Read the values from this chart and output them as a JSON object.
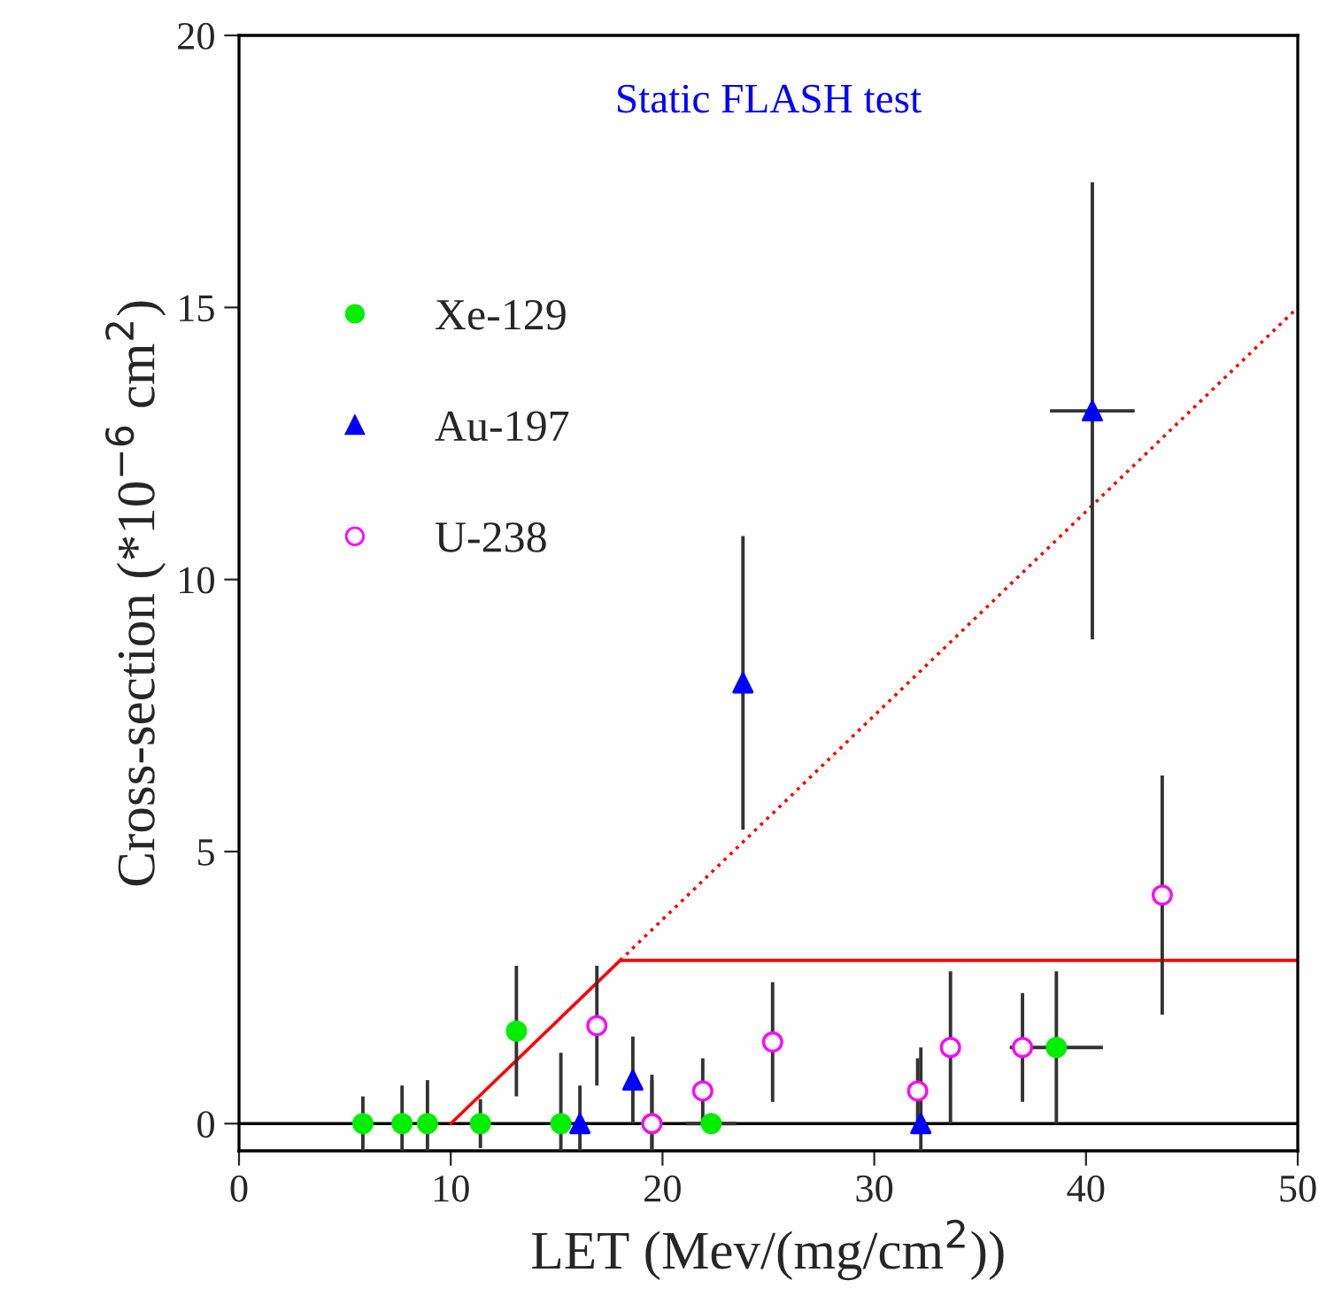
{
  "chart_data": {
    "type": "scatter",
    "xlabel": "LET (Mev/(mg/cm$^{2}$))",
    "ylabel": "Cross-section (*10$^{−6}$ cm$^{2}$)",
    "annotations": [
      "Static FLASH test"
    ],
    "xlim": [
      0,
      50
    ],
    "ylim": [
      -0.5,
      20
    ],
    "xticks": [
      0,
      10,
      20,
      30,
      40,
      50
    ],
    "yticks": [
      0,
      5,
      10,
      15,
      20
    ],
    "grid": false,
    "legend": "top left",
    "series": [
      {
        "name": "Xe-129",
        "color": "#00ee00",
        "marker": "circle",
        "x": [
          5.85,
          7.7,
          8.9,
          11.4,
          13.1,
          15.2,
          19.5,
          22.3,
          38.6
        ],
        "values": [
          0,
          0,
          0,
          0,
          1.7,
          0,
          0,
          0,
          1.4
        ],
        "errors": [
          0.5,
          0.7,
          0.8,
          0.45,
          1.2,
          1.3,
          0.9,
          null,
          1.4
        ],
        "xerrors": [
          null,
          null,
          null,
          null,
          null,
          null,
          null,
          1.2,
          2.2
        ]
      },
      {
        "name": "Au-197",
        "color": "#0000ff",
        "marker": "triangle",
        "x": [
          16.1,
          18.6,
          23.8,
          32.2,
          40.3
        ],
        "values": [
          0,
          0.8,
          8.1,
          0,
          13.1
        ],
        "errors": [
          0.7,
          0.8,
          2.7,
          1.4,
          4.2
        ],
        "xerrors": [
          null,
          null,
          null,
          null,
          2.0
        ]
      },
      {
        "name": "U-238",
        "color": "#ff00ff",
        "marker": "open circle",
        "x": [
          16.9,
          19.5,
          21.9,
          25.2,
          32.05,
          33.6,
          37.0,
          43.6
        ],
        "values": [
          1.8,
          0,
          0.6,
          1.5,
          0.6,
          1.4,
          1.4,
          4.2
        ],
        "errors": [
          1.1,
          0.8,
          0.6,
          1.1,
          0.6,
          1.4,
          1.0,
          2.2
        ]
      },
      {
        "type": "line",
        "color": "#ff0000",
        "line_style": "solid",
        "x": [
          10,
          18,
          50
        ],
        "values": [
          0,
          3,
          3
        ]
      },
      {
        "type": "line",
        "color": "#ff0000",
        "line_style": "dotted",
        "x": [
          18,
          50
        ],
        "values": [
          3,
          15
        ]
      }
    ],
    "ref_lines": [
      {
        "axis": "y",
        "value": 0,
        "color": "#000000",
        "line_style": "solid"
      }
    ]
  }
}
